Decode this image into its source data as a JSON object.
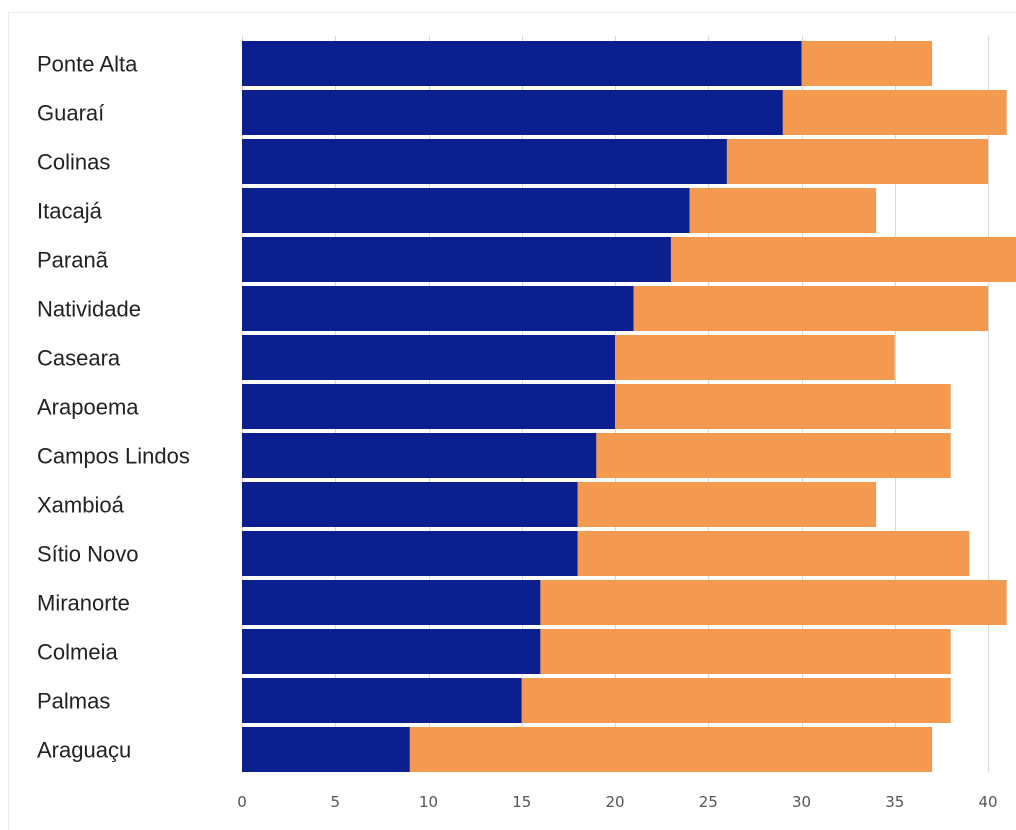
{
  "chart_data": {
    "type": "bar",
    "orientation": "horizontal",
    "stacked": true,
    "categories": [
      "Ponte Alta",
      "Guaraí",
      "Colinas",
      "Itacajá",
      "Paranã",
      "Natividade",
      "Caseara",
      "Arapoema",
      "Campos Lindos",
      "Xambioá",
      "Sítio Novo",
      "Miranorte",
      "Colmeia",
      "Palmas",
      "Araguaçu"
    ],
    "series": [
      {
        "color": "#0b1f8f",
        "values": [
          30,
          29,
          26,
          24,
          23,
          21,
          20,
          20,
          19,
          18,
          18,
          16,
          16,
          15,
          9
        ]
      },
      {
        "color": "#f39a50",
        "values": [
          7,
          12,
          14,
          10,
          19,
          19,
          15,
          18,
          19,
          16,
          21,
          25,
          22,
          23,
          28
        ]
      }
    ],
    "x_ticks": [
      "0",
      "5",
      "10",
      "15",
      "20",
      "25",
      "30",
      "35",
      "40"
    ],
    "xlim": [
      0,
      41.5
    ],
    "grid": true,
    "title": "",
    "xlabel": "",
    "ylabel": ""
  }
}
